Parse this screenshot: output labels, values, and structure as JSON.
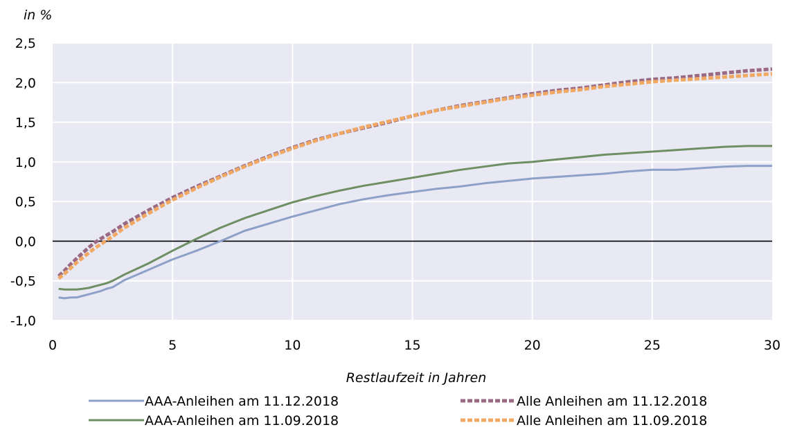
{
  "chart_data": {
    "type": "line",
    "title": "",
    "ylabel": "in %",
    "xlabel": "Restlaufzeit in Jahren",
    "xlim": [
      0,
      30
    ],
    "ylim": [
      -1.0,
      2.5
    ],
    "x_ticks": [
      0,
      5,
      10,
      15,
      20,
      25,
      30
    ],
    "x_tick_labels": [
      "0",
      "5",
      "10",
      "15",
      "20",
      "25",
      "30"
    ],
    "y_ticks": [
      -1.0,
      -0.5,
      0.0,
      0.5,
      1.0,
      1.5,
      2.0,
      2.5
    ],
    "y_tick_labels": [
      "-1,0",
      "-0,5",
      "0,0",
      "0,5",
      "1,0",
      "1,5",
      "2,0",
      "2,5"
    ],
    "grid": true,
    "zero_line": true,
    "plot_background": "#e8e9f2",
    "legend_position": "bottom",
    "series": [
      {
        "name": "AAA-Anleihen am 11.12.2018",
        "color": "#8da0c8",
        "dash": false,
        "x": [
          0.25,
          0.5,
          0.75,
          1,
          1.25,
          1.5,
          1.75,
          2,
          2.25,
          2.5,
          3,
          4,
          5,
          6,
          7,
          8,
          9,
          10,
          11,
          12,
          13,
          14,
          15,
          16,
          17,
          18,
          19,
          20,
          21,
          22,
          23,
          24,
          25,
          26,
          27,
          28,
          29,
          30
        ],
        "y": [
          -0.71,
          -0.72,
          -0.71,
          -0.71,
          -0.69,
          -0.67,
          -0.65,
          -0.63,
          -0.6,
          -0.58,
          -0.49,
          -0.36,
          -0.23,
          -0.12,
          0.0,
          0.13,
          0.22,
          0.31,
          0.39,
          0.47,
          0.53,
          0.58,
          0.62,
          0.66,
          0.69,
          0.73,
          0.76,
          0.79,
          0.81,
          0.83,
          0.85,
          0.88,
          0.9,
          0.9,
          0.92,
          0.94,
          0.95,
          0.95
        ]
      },
      {
        "name": "AAA-Anleihen am 11.09.2018",
        "color": "#6e8f63",
        "dash": false,
        "x": [
          0.25,
          0.5,
          0.75,
          1,
          1.25,
          1.5,
          1.75,
          2,
          2.25,
          2.5,
          3,
          4,
          5,
          6,
          7,
          8,
          9,
          10,
          11,
          12,
          13,
          14,
          15,
          16,
          17,
          18,
          19,
          20,
          21,
          22,
          23,
          24,
          25,
          26,
          27,
          28,
          29,
          30
        ],
        "y": [
          -0.6,
          -0.61,
          -0.61,
          -0.61,
          -0.6,
          -0.59,
          -0.57,
          -0.55,
          -0.53,
          -0.5,
          -0.42,
          -0.28,
          -0.12,
          0.03,
          0.17,
          0.29,
          0.39,
          0.49,
          0.57,
          0.64,
          0.7,
          0.75,
          0.8,
          0.85,
          0.9,
          0.94,
          0.98,
          1.0,
          1.03,
          1.06,
          1.09,
          1.11,
          1.13,
          1.15,
          1.17,
          1.19,
          1.2,
          1.2
        ]
      },
      {
        "name": "Alle Anleihen am 11.12.2018",
        "color": "#9a6a84",
        "dash": true,
        "x": [
          0.25,
          0.5,
          0.75,
          1,
          1.25,
          1.5,
          1.75,
          2,
          2.5,
          3,
          4,
          5,
          6,
          7,
          8,
          9,
          10,
          11,
          12,
          13,
          14,
          15,
          16,
          17,
          18,
          19,
          20,
          21,
          22,
          23,
          24,
          25,
          26,
          27,
          28,
          29,
          30
        ],
        "y": [
          -0.44,
          -0.37,
          -0.29,
          -0.22,
          -0.15,
          -0.08,
          -0.02,
          0.03,
          0.12,
          0.22,
          0.39,
          0.55,
          0.69,
          0.82,
          0.95,
          1.07,
          1.18,
          1.28,
          1.36,
          1.43,
          1.5,
          1.58,
          1.65,
          1.71,
          1.76,
          1.81,
          1.86,
          1.9,
          1.93,
          1.97,
          2.01,
          2.04,
          2.06,
          2.09,
          2.12,
          2.15,
          2.17
        ]
      },
      {
        "name": "Alle Anleihen am 11.09.2018",
        "color": "#f0a862",
        "dash": true,
        "x": [
          0.25,
          0.5,
          0.75,
          1,
          1.25,
          1.5,
          1.75,
          2,
          2.5,
          3,
          4,
          5,
          6,
          7,
          8,
          9,
          10,
          11,
          12,
          13,
          14,
          15,
          16,
          17,
          18,
          19,
          20,
          21,
          22,
          23,
          24,
          25,
          26,
          27,
          28,
          29,
          30
        ],
        "y": [
          -0.47,
          -0.41,
          -0.34,
          -0.27,
          -0.21,
          -0.15,
          -0.09,
          -0.04,
          0.06,
          0.17,
          0.35,
          0.52,
          0.67,
          0.81,
          0.94,
          1.06,
          1.17,
          1.27,
          1.36,
          1.44,
          1.51,
          1.58,
          1.65,
          1.7,
          1.75,
          1.8,
          1.84,
          1.88,
          1.91,
          1.95,
          1.98,
          2.01,
          2.03,
          2.05,
          2.07,
          2.09,
          2.11
        ]
      }
    ]
  }
}
